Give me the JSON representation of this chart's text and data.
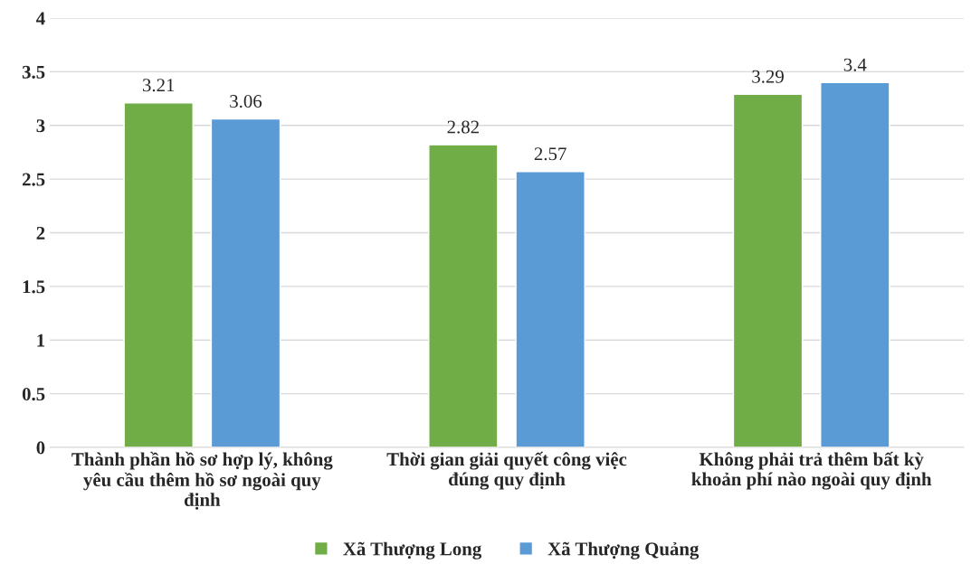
{
  "chart_data": {
    "type": "bar",
    "categories": [
      "Thành phần hồ sơ hợp lý, không\nyêu cầu thêm hồ sơ ngoài quy\nđịnh",
      "Thời gian giải quyết công việc\nđúng quy định",
      "Không phải trả thêm bất kỳ\nkhoản phí nào ngoài quy định"
    ],
    "series": [
      {
        "name": "Xã Thượng Long",
        "color": "#70ad47",
        "values": [
          3.21,
          2.82,
          3.29
        ]
      },
      {
        "name": "Xã Thượng Quảng",
        "color": "#5b9bd5",
        "values": [
          3.06,
          2.57,
          3.4
        ]
      }
    ],
    "ylim": [
      0,
      4
    ],
    "yticks": [
      0,
      0.5,
      1,
      1.5,
      2,
      2.5,
      3,
      3.5,
      4
    ],
    "grid": "y",
    "legend": "bottom",
    "data_labels": true
  }
}
